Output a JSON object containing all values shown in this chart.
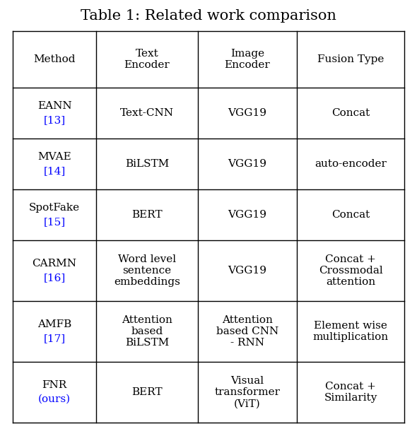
{
  "title": "Table 1: Related work comparison",
  "title_fontsize": 15,
  "col_headers": [
    "Method",
    "Text\nEncoder",
    "Image\nEncoder",
    "Fusion Type"
  ],
  "rows": [
    {
      "method_text": "EANN",
      "method_ref": "[13]",
      "text_encoder": "Text-CNN",
      "image_encoder": "VGG19",
      "fusion_type": "Concat"
    },
    {
      "method_text": "MVAE",
      "method_ref": "[14]",
      "text_encoder": "BiLSTM",
      "image_encoder": "VGG19",
      "fusion_type": "auto-encoder"
    },
    {
      "method_text": "SpotFake",
      "method_ref": "[15]",
      "text_encoder": "BERT",
      "image_encoder": "VGG19",
      "fusion_type": "Concat"
    },
    {
      "method_text": "CARMN",
      "method_ref": "[16]",
      "text_encoder": "Word level\nsentence\nembeddings",
      "image_encoder": "VGG19",
      "fusion_type": "Concat +\nCrossmodal\nattention"
    },
    {
      "method_text": "AMFB",
      "method_ref": "[17]",
      "text_encoder": "Attention\nbased\nBiLSTM",
      "image_encoder": "Attention\nbased CNN\n- RNN",
      "fusion_type": "Element wise\nmultiplication"
    },
    {
      "method_text": "FNR",
      "method_ref": "(ours)",
      "text_encoder": "BERT",
      "image_encoder": "Visual\ntransformer\n(ViT)",
      "fusion_type": "Concat +\nSimilarity"
    }
  ],
  "ref_color": "#0000FF",
  "text_color": "#000000",
  "bg_color": "#FFFFFF",
  "line_color": "#000000",
  "body_fontsize": 11,
  "header_fontsize": 11
}
